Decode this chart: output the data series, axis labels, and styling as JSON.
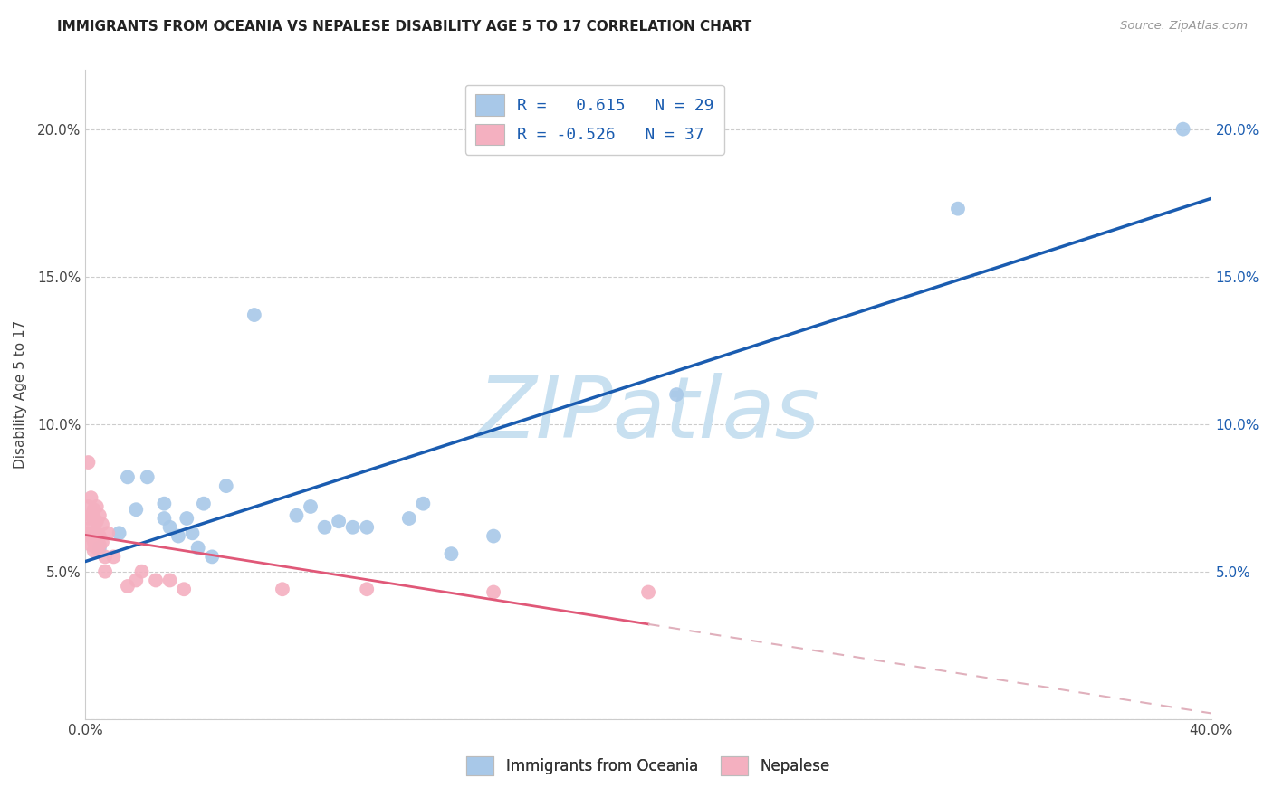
{
  "title": "IMMIGRANTS FROM OCEANIA VS NEPALESE DISABILITY AGE 5 TO 17 CORRELATION CHART",
  "source": "Source: ZipAtlas.com",
  "ylabel": "Disability Age 5 to 17",
  "xlim": [
    0.0,
    0.4
  ],
  "ylim": [
    0.0,
    0.22
  ],
  "xticks": [
    0.0,
    0.05,
    0.1,
    0.15,
    0.2,
    0.25,
    0.3,
    0.35,
    0.4
  ],
  "yticks": [
    0.0,
    0.05,
    0.1,
    0.15,
    0.2
  ],
  "legend_blue_label": "R =   0.615   N = 29",
  "legend_pink_label": "R = -0.526   N = 37",
  "legend_blue_series": "Immigrants from Oceania",
  "legend_pink_series": "Nepalese",
  "watermark": "ZIPatlas",
  "blue_scatter": [
    [
      0.005,
      0.058
    ],
    [
      0.012,
      0.063
    ],
    [
      0.015,
      0.082
    ],
    [
      0.018,
      0.071
    ],
    [
      0.022,
      0.082
    ],
    [
      0.028,
      0.073
    ],
    [
      0.028,
      0.068
    ],
    [
      0.03,
      0.065
    ],
    [
      0.033,
      0.062
    ],
    [
      0.036,
      0.068
    ],
    [
      0.038,
      0.063
    ],
    [
      0.04,
      0.058
    ],
    [
      0.042,
      0.073
    ],
    [
      0.045,
      0.055
    ],
    [
      0.05,
      0.079
    ],
    [
      0.06,
      0.137
    ],
    [
      0.075,
      0.069
    ],
    [
      0.08,
      0.072
    ],
    [
      0.085,
      0.065
    ],
    [
      0.09,
      0.067
    ],
    [
      0.095,
      0.065
    ],
    [
      0.1,
      0.065
    ],
    [
      0.115,
      0.068
    ],
    [
      0.12,
      0.073
    ],
    [
      0.13,
      0.056
    ],
    [
      0.145,
      0.062
    ],
    [
      0.21,
      0.11
    ],
    [
      0.31,
      0.173
    ],
    [
      0.39,
      0.2
    ]
  ],
  "pink_scatter": [
    [
      0.001,
      0.087
    ],
    [
      0.001,
      0.072
    ],
    [
      0.001,
      0.068
    ],
    [
      0.001,
      0.063
    ],
    [
      0.002,
      0.075
    ],
    [
      0.002,
      0.069
    ],
    [
      0.002,
      0.065
    ],
    [
      0.002,
      0.062
    ],
    [
      0.002,
      0.059
    ],
    [
      0.003,
      0.071
    ],
    [
      0.003,
      0.068
    ],
    [
      0.003,
      0.063
    ],
    [
      0.003,
      0.06
    ],
    [
      0.003,
      0.057
    ],
    [
      0.004,
      0.072
    ],
    [
      0.004,
      0.067
    ],
    [
      0.004,
      0.063
    ],
    [
      0.004,
      0.058
    ],
    [
      0.005,
      0.069
    ],
    [
      0.005,
      0.062
    ],
    [
      0.005,
      0.059
    ],
    [
      0.006,
      0.066
    ],
    [
      0.006,
      0.06
    ],
    [
      0.007,
      0.055
    ],
    [
      0.007,
      0.05
    ],
    [
      0.008,
      0.063
    ],
    [
      0.01,
      0.055
    ],
    [
      0.015,
      0.045
    ],
    [
      0.018,
      0.047
    ],
    [
      0.02,
      0.05
    ],
    [
      0.025,
      0.047
    ],
    [
      0.03,
      0.047
    ],
    [
      0.035,
      0.044
    ],
    [
      0.07,
      0.044
    ],
    [
      0.1,
      0.044
    ],
    [
      0.145,
      0.043
    ],
    [
      0.2,
      0.043
    ]
  ],
  "blue_color": "#a8c8e8",
  "pink_color": "#f4b0c0",
  "blue_line_color": "#1a5cb0",
  "pink_line_color": "#e05878",
  "pink_dash_color": "#e0b0bc",
  "background_color": "#ffffff",
  "grid_color": "#cccccc",
  "title_fontsize": 11,
  "axis_label_fontsize": 11,
  "tick_fontsize": 11,
  "right_tick_color": "#1a5cb0",
  "watermark_color": "#c8e0f0",
  "watermark_fontsize": 68
}
